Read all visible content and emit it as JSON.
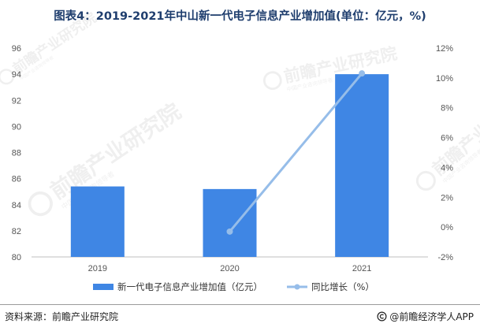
{
  "title": "图表4：2019-2021年中山新一代电子信息产业增加值(单位：亿元，%)",
  "source": "资料来源：前瞻产业研究院",
  "brand": {
    "icon": "copyright-icon",
    "label": "@前瞻经济学人APP"
  },
  "watermark": {
    "main": "前瞻产业研究院",
    "sub": "中国产业咨询领导者"
  },
  "colors": {
    "bar": "#3f86e4",
    "line": "#96bde9",
    "axis_text": "#555555"
  },
  "chart_data": {
    "type": "bar",
    "categories": [
      "2019",
      "2020",
      "2021"
    ],
    "series": [
      {
        "name": "新一代电子信息产业增加值（亿元）",
        "type": "bar",
        "axis": "left",
        "values": [
          85.4,
          85.2,
          94.0
        ]
      },
      {
        "name": "同比增长（%）",
        "type": "line",
        "axis": "right",
        "values": [
          null,
          -0.3,
          10.3
        ]
      }
    ],
    "left_axis": {
      "ticks": [
        "80",
        "82",
        "84",
        "86",
        "88",
        "90",
        "92",
        "94",
        "96"
      ],
      "ylim": [
        80,
        96
      ]
    },
    "right_axis": {
      "ticks": [
        "-2%",
        "0%",
        "2%",
        "4%",
        "6%",
        "8%",
        "10%",
        "12%"
      ],
      "ylim": [
        -2,
        12
      ]
    },
    "legend": "bottom",
    "grid": false
  }
}
